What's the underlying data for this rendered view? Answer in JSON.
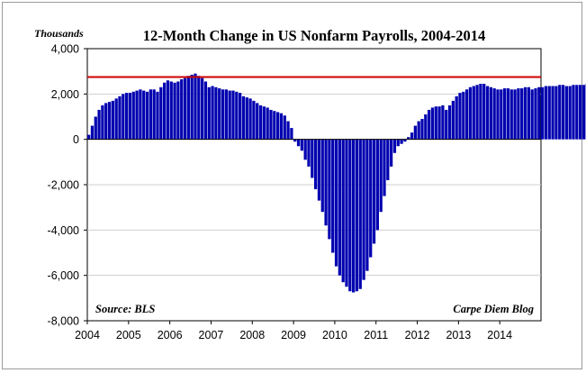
{
  "chart_data": {
    "type": "bar",
    "title": "12-Month Change in US Nonfarm Payrolls, 2004-2014",
    "units_label": "Thousands",
    "source": "Source: BLS",
    "credit": "Carpe Diem Blog",
    "xlabel": "",
    "ylabel": "",
    "ylim": [
      -8000,
      4000
    ],
    "yticks": [
      "4,000",
      "2,000",
      "0",
      "-2,000",
      "-4,000",
      "-6,000",
      "-8,000"
    ],
    "ytick_values": [
      4000,
      2000,
      0,
      -2000,
      -4000,
      -6000,
      -8000
    ],
    "xticks": [
      "2004",
      "2005",
      "2006",
      "2007",
      "2008",
      "2009",
      "2010",
      "2011",
      "2012",
      "2013",
      "2014"
    ],
    "xlim": [
      2004.0,
      2015.0
    ],
    "grid": "horizontal",
    "bar_color": "#0000b0",
    "reference_line": {
      "value": 2750,
      "color": "#cc0000"
    },
    "x_start": "2004-01",
    "x_end": "2014-09",
    "values": [
      200,
      600,
      1000,
      1300,
      1500,
      1600,
      1650,
      1700,
      1800,
      1900,
      2000,
      2050,
      2050,
      2100,
      2150,
      2200,
      2150,
      2100,
      2200,
      2200,
      2100,
      2300,
      2500,
      2600,
      2550,
      2500,
      2550,
      2650,
      2700,
      2800,
      2850,
      2900,
      2800,
      2700,
      2550,
      2300,
      2350,
      2300,
      2250,
      2200,
      2200,
      2150,
      2150,
      2100,
      2050,
      1900,
      1850,
      1800,
      1700,
      1600,
      1500,
      1450,
      1400,
      1300,
      1250,
      1200,
      1150,
      1050,
      800,
      500,
      -100,
      -300,
      -500,
      -900,
      -1200,
      -1700,
      -2200,
      -2700,
      -3200,
      -3800,
      -4400,
      -5000,
      -5600,
      -6000,
      -6300,
      -6500,
      -6700,
      -6750,
      -6700,
      -6600,
      -6200,
      -5800,
      -5200,
      -4600,
      -4000,
      -3200,
      -2500,
      -1800,
      -1200,
      -600,
      -300,
      -200,
      -100,
      100,
      300,
      600,
      800,
      900,
      1100,
      1300,
      1400,
      1450,
      1450,
      1500,
      1300,
      1500,
      1700,
      1900,
      2050,
      2100,
      2200,
      2300,
      2350,
      2400,
      2450,
      2450,
      2350,
      2300,
      2250,
      2200,
      2200,
      2250,
      2250,
      2200,
      2200,
      2250,
      2250,
      2300,
      2300,
      2200,
      2250,
      2300,
      2300,
      2350,
      2350,
      2350,
      2350,
      2400,
      2400,
      2350,
      2350,
      2400,
      2400,
      2400,
      2400,
      2450,
      2500,
      2550,
      2600,
      2650,
      2650,
      2600,
      2650
    ]
  }
}
